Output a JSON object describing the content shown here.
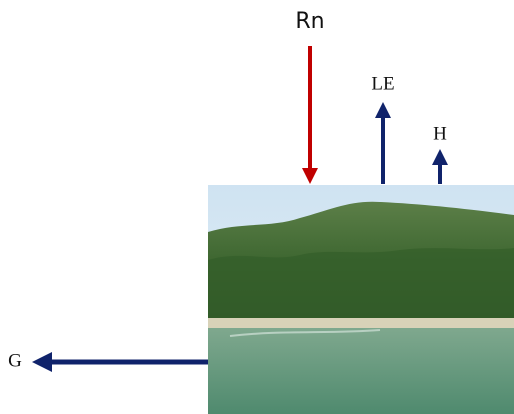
{
  "fluxes": [
    {
      "label": "Rn"
    },
    {
      "label": "LE"
    },
    {
      "label": "H"
    },
    {
      "label": "G"
    }
  ]
}
